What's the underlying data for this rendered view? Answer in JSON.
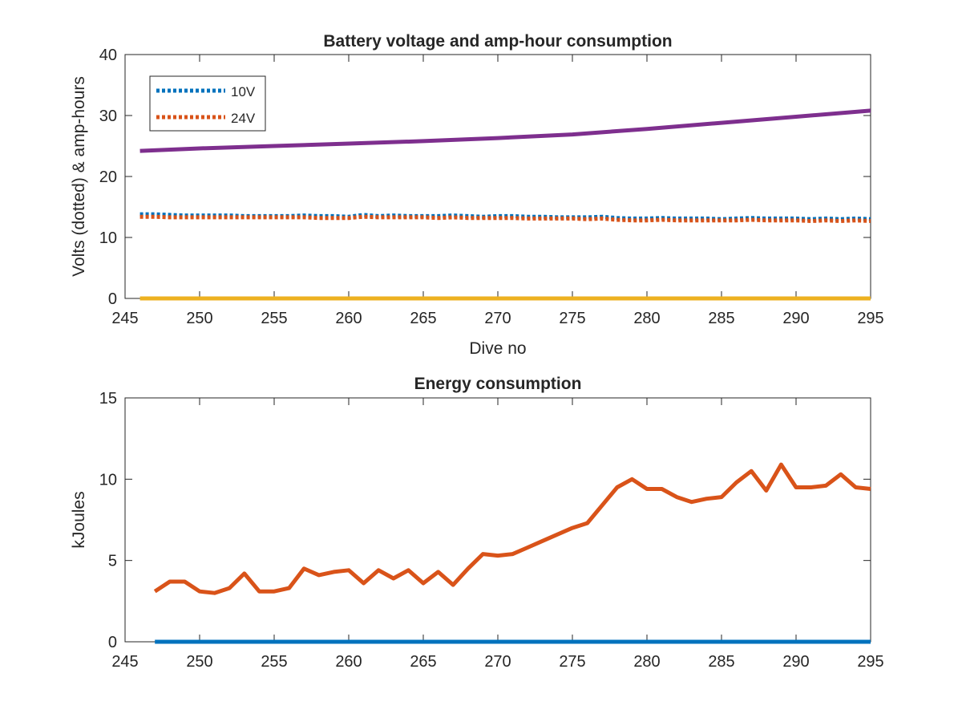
{
  "chart_data": [
    {
      "type": "line",
      "title": "Battery voltage and amp-hour consumption",
      "xlabel": "Dive no",
      "ylabel": "Volts (dotted) & amp-hours",
      "xlim": [
        245,
        295
      ],
      "ylim": [
        0,
        40
      ],
      "xticks": [
        245,
        250,
        255,
        260,
        265,
        270,
        275,
        280,
        285,
        290,
        295
      ],
      "yticks": [
        0,
        10,
        20,
        30,
        40
      ],
      "grid": false,
      "legend": {
        "placement": "top-left",
        "entries": [
          "10V",
          "24V"
        ]
      },
      "series": [
        {
          "name": "10V",
          "style": "dotted",
          "color": "#0072BD",
          "x": [
            246,
            247,
            248,
            249,
            250,
            251,
            252,
            253,
            254,
            255,
            256,
            257,
            258,
            259,
            260,
            261,
            262,
            263,
            264,
            265,
            266,
            267,
            268,
            269,
            270,
            271,
            272,
            273,
            274,
            275,
            276,
            277,
            278,
            279,
            280,
            281,
            282,
            283,
            284,
            285,
            286,
            287,
            288,
            289,
            290,
            291,
            292,
            293,
            294,
            295
          ],
          "y": [
            13.8,
            13.8,
            13.7,
            13.6,
            13.6,
            13.6,
            13.6,
            13.5,
            13.5,
            13.5,
            13.5,
            13.6,
            13.5,
            13.5,
            13.4,
            13.7,
            13.5,
            13.6,
            13.5,
            13.5,
            13.5,
            13.6,
            13.5,
            13.4,
            13.5,
            13.5,
            13.4,
            13.4,
            13.3,
            13.3,
            13.3,
            13.4,
            13.2,
            13.1,
            13.1,
            13.2,
            13.1,
            13.1,
            13.1,
            13.0,
            13.1,
            13.2,
            13.1,
            13.1,
            13.1,
            13.0,
            13.1,
            13.0,
            13.1,
            13.0
          ]
        },
        {
          "name": "24V",
          "style": "dotted",
          "color": "#D95319",
          "x": [
            246,
            247,
            248,
            249,
            250,
            251,
            252,
            253,
            254,
            255,
            256,
            257,
            258,
            259,
            260,
            261,
            262,
            263,
            264,
            265,
            266,
            267,
            268,
            269,
            270,
            271,
            272,
            273,
            274,
            275,
            276,
            277,
            278,
            279,
            280,
            281,
            282,
            283,
            284,
            285,
            286,
            287,
            288,
            289,
            290,
            291,
            292,
            293,
            294,
            295
          ],
          "y": [
            13.4,
            13.4,
            13.3,
            13.3,
            13.3,
            13.3,
            13.3,
            13.3,
            13.3,
            13.3,
            13.3,
            13.3,
            13.2,
            13.2,
            13.2,
            13.4,
            13.3,
            13.3,
            13.3,
            13.3,
            13.2,
            13.3,
            13.2,
            13.2,
            13.2,
            13.2,
            13.1,
            13.1,
            13.1,
            13.1,
            13.0,
            13.1,
            12.9,
            12.8,
            12.8,
            12.9,
            12.8,
            12.8,
            12.8,
            12.8,
            12.8,
            12.9,
            12.8,
            12.8,
            12.8,
            12.7,
            12.8,
            12.7,
            12.8,
            12.7
          ]
        },
        {
          "style": "solid",
          "color": "#7E2F8E",
          "x": [
            246,
            250,
            255,
            260,
            265,
            270,
            275,
            280,
            285,
            290,
            295
          ],
          "y": [
            24.2,
            24.6,
            25.0,
            25.4,
            25.8,
            26.3,
            26.9,
            27.8,
            28.8,
            29.8,
            30.8
          ]
        },
        {
          "style": "solid",
          "color": "#EDB120",
          "x": [
            246,
            295
          ],
          "y": [
            0,
            0
          ]
        }
      ]
    },
    {
      "type": "line",
      "title": "Energy consumption",
      "xlabel": "",
      "ylabel": "kJoules",
      "xlim": [
        245,
        295
      ],
      "ylim": [
        0,
        15
      ],
      "xticks": [
        245,
        250,
        255,
        260,
        265,
        270,
        275,
        280,
        285,
        290,
        295
      ],
      "yticks": [
        0,
        5,
        10,
        15
      ],
      "grid": false,
      "series": [
        {
          "style": "solid",
          "color": "#D95319",
          "x": [
            247,
            248,
            249,
            250,
            251,
            252,
            253,
            254,
            255,
            256,
            257,
            258,
            259,
            260,
            261,
            262,
            263,
            264,
            265,
            266,
            267,
            268,
            269,
            270,
            271,
            272,
            273,
            274,
            275,
            276,
            277,
            278,
            279,
            280,
            281,
            282,
            283,
            284,
            285,
            286,
            287,
            288,
            289,
            290,
            291,
            292,
            293,
            294,
            295
          ],
          "y": [
            3.1,
            3.7,
            3.7,
            3.1,
            3.0,
            3.3,
            4.2,
            3.1,
            3.1,
            3.3,
            4.5,
            4.1,
            4.3,
            4.4,
            3.6,
            4.4,
            3.9,
            4.4,
            3.6,
            4.3,
            3.5,
            4.5,
            5.4,
            5.3,
            5.4,
            5.8,
            6.2,
            6.6,
            7.0,
            7.3,
            8.4,
            9.5,
            10.0,
            9.4,
            9.4,
            8.9,
            8.6,
            8.8,
            8.9,
            9.8,
            10.5,
            9.3,
            10.9,
            9.5,
            9.5,
            9.6,
            10.3,
            9.5,
            9.4
          ]
        },
        {
          "style": "solid",
          "color": "#0072BD",
          "x": [
            247,
            295
          ],
          "y": [
            0,
            0
          ]
        }
      ]
    }
  ]
}
